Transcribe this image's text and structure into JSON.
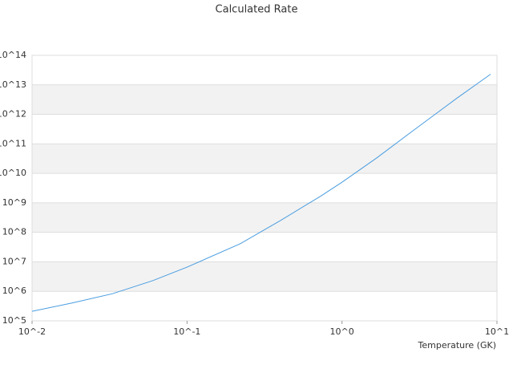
{
  "chart_data": {
    "type": "line",
    "title": "Calculated Rate",
    "x_label": "Temperature (GK)",
    "xscale": "log",
    "yscale": "log",
    "grid": true,
    "grid_bands": true,
    "xlim": [
      0.01,
      10
    ],
    "ylim": [
      100000,
      100000000000000
    ],
    "xticks": [
      {
        "value": 0.01,
        "label": "10^-2"
      },
      {
        "value": 0.1,
        "label": "10^-1"
      },
      {
        "value": 1,
        "label": "10^0"
      },
      {
        "value": 10,
        "label": "10^1"
      }
    ],
    "yticks": [
      {
        "value": 100000,
        "label": "10^5"
      },
      {
        "value": 1000000,
        "label": "10^6"
      },
      {
        "value": 10000000,
        "label": "10^7"
      },
      {
        "value": 100000000,
        "label": "10^8"
      },
      {
        "value": 1000000000,
        "label": "10^9"
      },
      {
        "value": 10000000000,
        "label": "10^10"
      },
      {
        "value": 100000000000,
        "label": "10^11"
      },
      {
        "value": 1000000000000,
        "label": "10^12"
      },
      {
        "value": 10000000000000,
        "label": "10^13"
      },
      {
        "value": 100000000000000,
        "label": "10^14"
      }
    ],
    "series": [
      {
        "color": "#4a9de0",
        "x": [
          0.01,
          0.018,
          0.033,
          0.06,
          0.1,
          0.22,
          0.4,
          0.73,
          1,
          1.67,
          3.0,
          5.5,
          9.1
        ],
        "values": [
          210000,
          400000,
          830000,
          2300000,
          6600000,
          41000000,
          250000000,
          1700000000,
          5000000000,
          33000000000,
          330000000000,
          3500000000000,
          23000000000000
        ]
      }
    ]
  }
}
